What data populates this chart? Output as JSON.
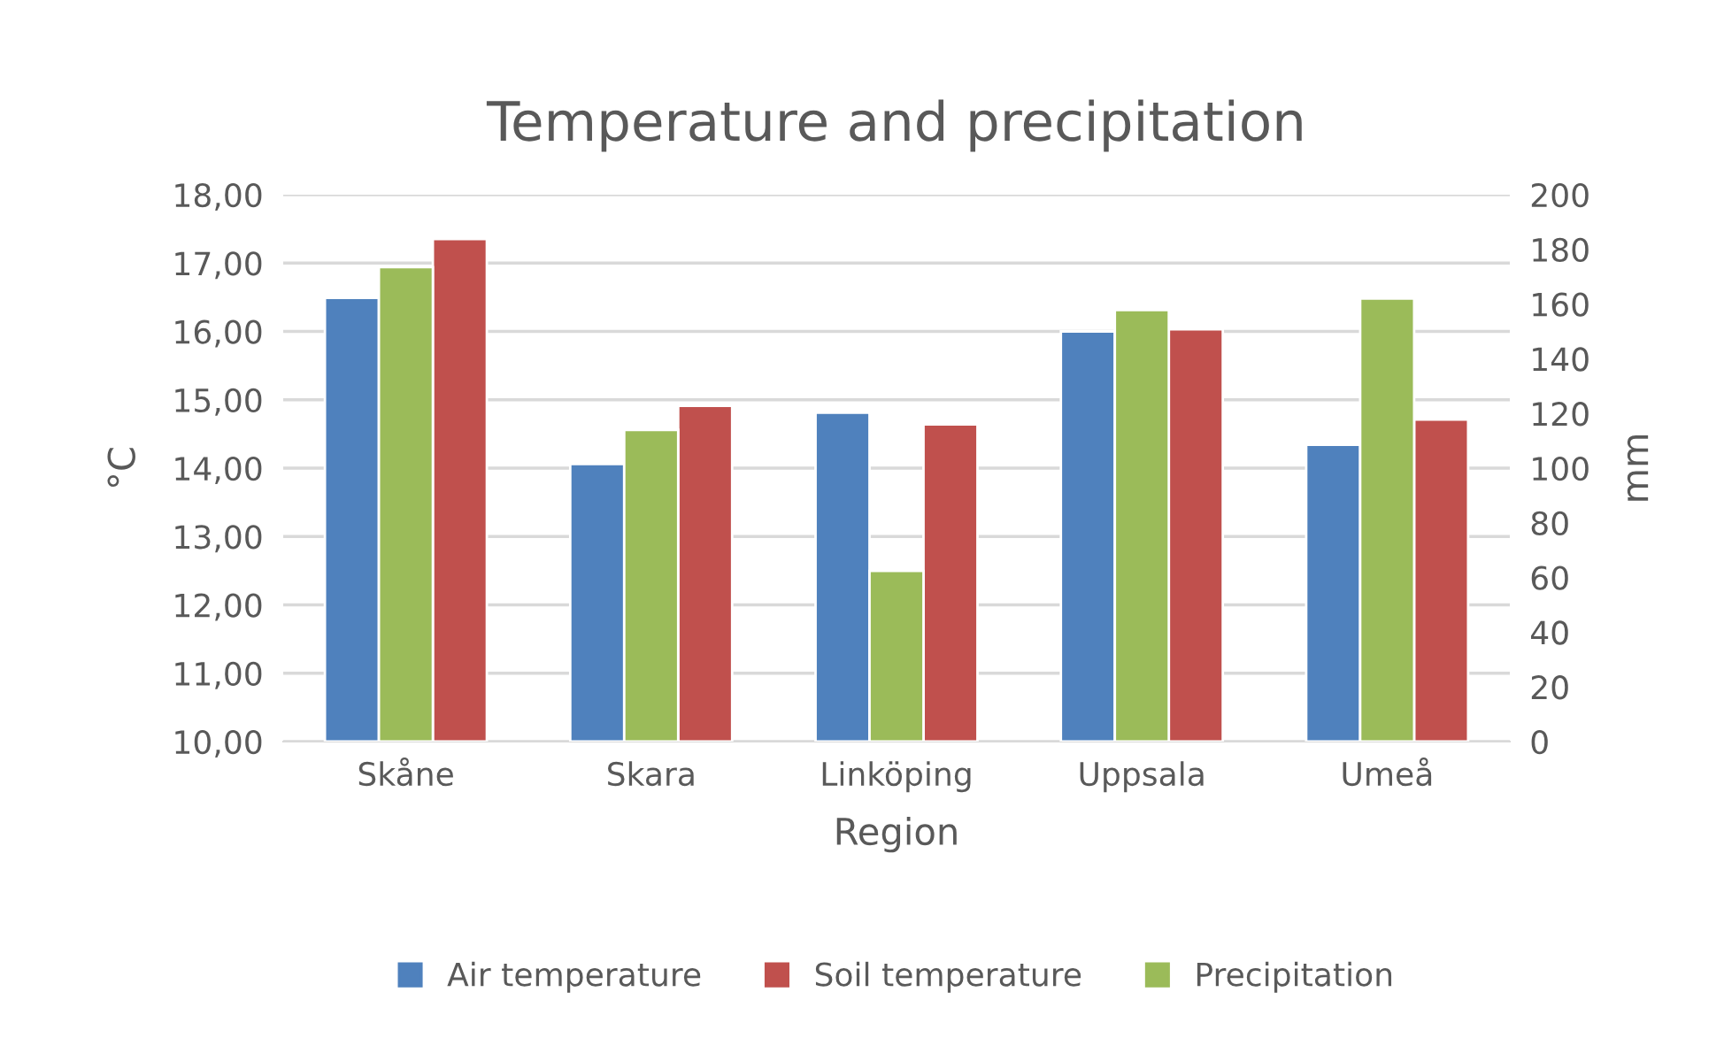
{
  "chart_data": {
    "type": "bar",
    "title": "Temperature and precipitation",
    "xlabel": "Region",
    "ylabel": "°C",
    "y2label": "mm",
    "categories": [
      "Skåne",
      "Skara",
      "Linköping",
      "Uppsala",
      "Umeå"
    ],
    "series": [
      {
        "name": "Air temperature",
        "color": "#4f81bd",
        "values": [
          16.49,
          14.06,
          14.81,
          16.0,
          14.34
        ]
      },
      {
        "name": "Soil temperature",
        "color": "#c0504d",
        "values": [
          17.35,
          14.91,
          14.64,
          16.03,
          14.71
        ]
      },
      {
        "name": "Precipitation",
        "color": "#9bbb59",
        "axis": "y2",
        "values": [
          173.5,
          114,
          62.4,
          157.8,
          162
        ]
      }
    ],
    "ylim": [
      10,
      18
    ],
    "yticks": [
      {
        "value": 10,
        "label": "10,00"
      },
      {
        "value": 11,
        "label": "11,00"
      },
      {
        "value": 12,
        "label": "12,00"
      },
      {
        "value": 13,
        "label": "13,00"
      },
      {
        "value": 14,
        "label": "14,00"
      },
      {
        "value": 15,
        "label": "15,00"
      },
      {
        "value": 16,
        "label": "16,00"
      },
      {
        "value": 17,
        "label": "17,00"
      },
      {
        "value": 18,
        "label": "18,00"
      }
    ],
    "y2lim": [
      0,
      200
    ],
    "y2ticks": [
      0,
      20,
      40,
      60,
      80,
      100,
      120,
      140,
      160,
      180,
      200
    ],
    "grid": "y",
    "legend": "bottom"
  }
}
